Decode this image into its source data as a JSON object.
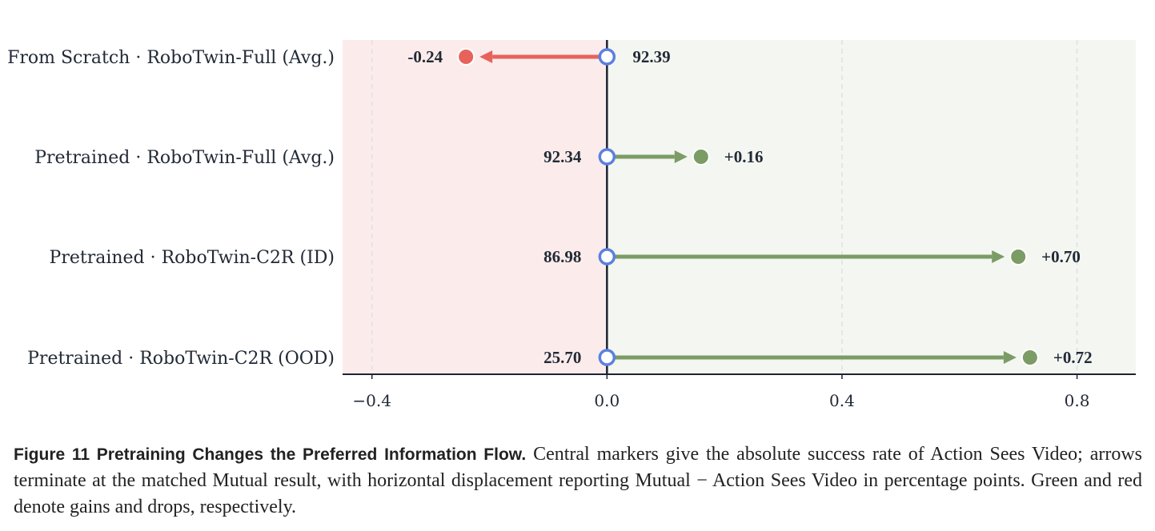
{
  "chart_data": {
    "type": "arrow-dot",
    "rows": [
      {
        "label": "From Scratch · RoboTwin-Full (Avg.)",
        "base_label": "92.39",
        "delta": -0.24,
        "delta_label": "-0.24"
      },
      {
        "label": "Pretrained · RoboTwin-Full (Avg.)",
        "base_label": "92.34",
        "delta": 0.16,
        "delta_label": "+0.16"
      },
      {
        "label": "Pretrained · RoboTwin-C2R (ID)",
        "base_label": "86.98",
        "delta": 0.7,
        "delta_label": "+0.70"
      },
      {
        "label": "Pretrained · RoboTwin-C2R (OOD)",
        "base_label": "25.70",
        "delta": 0.72,
        "delta_label": "+0.72"
      }
    ],
    "x_ticks": [
      {
        "value": -0.4,
        "label": "−0.4"
      },
      {
        "value": 0.0,
        "label": "0.0"
      },
      {
        "value": 0.4,
        "label": "0.4"
      },
      {
        "value": 0.8,
        "label": "0.8"
      }
    ],
    "xlim": [
      -0.45,
      0.9
    ],
    "grid": true,
    "colors": {
      "gain": "#7b9c65",
      "drop": "#e8625c",
      "base_marker": "#5b80e0",
      "gain_region": "#f4f6f1",
      "drop_region": "#fbeceb",
      "axis": "#1d2433"
    }
  },
  "caption": {
    "head": "Figure 11  Pretraining Changes the Preferred Information Flow.",
    "body": "Central markers give the absolute success rate of Action Sees Video; arrows terminate at the matched Mutual result, with horizontal displacement reporting Mutual − Action Sees Video in percentage points. Green and red denote gains and drops, respectively."
  }
}
